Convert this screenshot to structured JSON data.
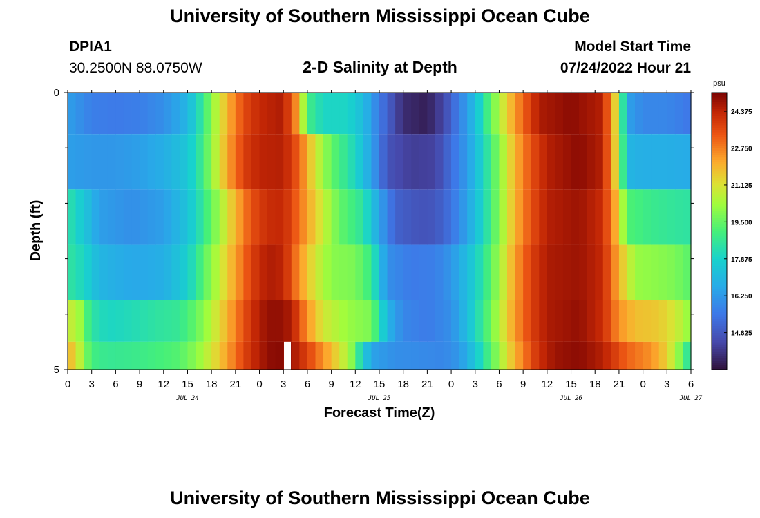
{
  "header": {
    "title": "University of Southern Mississippi Ocean Cube",
    "station": "DPIA1",
    "coords": "30.2500N  88.0750W",
    "chart_title": "2-D Salinity at Depth",
    "model_start_label": "Model Start Time",
    "model_start_value": "07/24/2022 Hour 21"
  },
  "footer": {
    "title": "University of Southern Mississippi Ocean Cube"
  },
  "chart_data": {
    "type": "heatmap",
    "title": "2-D Salinity at Depth",
    "xlabel": "Forecast Time(Z)",
    "ylabel": "Depth (ft)",
    "x_tick_labels": [
      "0",
      "3",
      "6",
      "9",
      "12",
      "15",
      "18",
      "21",
      "0",
      "3",
      "6",
      "9",
      "12",
      "15",
      "18",
      "21",
      "0",
      "3",
      "6",
      "9",
      "12",
      "15",
      "18",
      "21",
      "0",
      "3",
      "6"
    ],
    "day_labels": [
      {
        "label": "JUL 24",
        "hour": 15
      },
      {
        "label": "JUL 25",
        "hour": 39
      },
      {
        "label": "JUL 26",
        "hour": 63
      },
      {
        "label": "JUL 27",
        "hour": 78
      }
    ],
    "x_range_hours": [
      0,
      78
    ],
    "y_tick_labels": [
      "0",
      "5"
    ],
    "y_range_ft": [
      0,
      5
    ],
    "depth_bands_ft": [
      0.25,
      1.25,
      2.25,
      3.25,
      4.25,
      4.75
    ],
    "colorbar": {
      "unit": "psu",
      "min": 13.0,
      "max": 25.2,
      "tick_values": [
        24.375,
        22.75,
        21.125,
        19.5,
        17.875,
        16.25,
        14.625
      ],
      "tick_labels": [
        "24.375",
        "22.750",
        "21.125",
        "19.500",
        "17.875",
        "16.250",
        "14.625"
      ]
    },
    "missing_cells": [
      {
        "hour": 27.5,
        "band": 5
      }
    ],
    "profiles": [
      {
        "depth_ft": 0.25,
        "points": [
          [
            0,
            16.4
          ],
          [
            3,
            15.6
          ],
          [
            6,
            15.5
          ],
          [
            9,
            15.6
          ],
          [
            12,
            16.0
          ],
          [
            15,
            17.0
          ],
          [
            17,
            18.8
          ],
          [
            18.5,
            20.5
          ],
          [
            20,
            22.0
          ],
          [
            22,
            23.6
          ],
          [
            24,
            24.3
          ],
          [
            27,
            24.6
          ],
          [
            29,
            22.0
          ],
          [
            30,
            19.0
          ],
          [
            32,
            18.0
          ],
          [
            35,
            18.0
          ],
          [
            37,
            17.2
          ],
          [
            39,
            15.5
          ],
          [
            42,
            13.6
          ],
          [
            45,
            13.3
          ],
          [
            47,
            14.2
          ],
          [
            49,
            15.6
          ],
          [
            51,
            17.2
          ],
          [
            53,
            19.5
          ],
          [
            55,
            21.5
          ],
          [
            57,
            23.2
          ],
          [
            59,
            24.6
          ],
          [
            63,
            25.0
          ],
          [
            67,
            24.5
          ],
          [
            69,
            20.5
          ],
          [
            70,
            16.5
          ],
          [
            72,
            15.8
          ],
          [
            75,
            15.8
          ],
          [
            78,
            15.4
          ]
        ]
      },
      {
        "depth_ft": 1.25,
        "points": [
          [
            0,
            16.4
          ],
          [
            3,
            16.2
          ],
          [
            6,
            16.2
          ],
          [
            9,
            16.4
          ],
          [
            12,
            16.8
          ],
          [
            15,
            17.5
          ],
          [
            17,
            19.0
          ],
          [
            18.5,
            20.6
          ],
          [
            20,
            22.2
          ],
          [
            22,
            23.8
          ],
          [
            24,
            24.4
          ],
          [
            27,
            24.5
          ],
          [
            29,
            23.2
          ],
          [
            31,
            21.0
          ],
          [
            33,
            19.5
          ],
          [
            36,
            18.0
          ],
          [
            38,
            16.5
          ],
          [
            40,
            14.5
          ],
          [
            43,
            14.0
          ],
          [
            46,
            14.1
          ],
          [
            48,
            15.2
          ],
          [
            50,
            16.3
          ],
          [
            52,
            18.0
          ],
          [
            54,
            20.0
          ],
          [
            56,
            22.0
          ],
          [
            58,
            23.5
          ],
          [
            60,
            24.5
          ],
          [
            64,
            25.0
          ],
          [
            67,
            24.5
          ],
          [
            69,
            20.6
          ],
          [
            70,
            17.0
          ],
          [
            72,
            16.8
          ],
          [
            75,
            16.8
          ],
          [
            78,
            16.7
          ]
        ]
      },
      {
        "depth_ft": 2.25,
        "points": [
          [
            0,
            18.5
          ],
          [
            2,
            17.5
          ],
          [
            4,
            16.4
          ],
          [
            8,
            16.0
          ],
          [
            12,
            16.4
          ],
          [
            15,
            17.4
          ],
          [
            17,
            18.7
          ],
          [
            19,
            20.3
          ],
          [
            21,
            22.0
          ],
          [
            23,
            23.5
          ],
          [
            25,
            24.2
          ],
          [
            27,
            24.3
          ],
          [
            29,
            23.0
          ],
          [
            31,
            21.5
          ],
          [
            34,
            19.5
          ],
          [
            37,
            18.5
          ],
          [
            39,
            16.5
          ],
          [
            41,
            14.9
          ],
          [
            44,
            14.5
          ],
          [
            46,
            14.6
          ],
          [
            48,
            15.3
          ],
          [
            50,
            16.5
          ],
          [
            52,
            18.0
          ],
          [
            54,
            20.0
          ],
          [
            56,
            22.0
          ],
          [
            58,
            23.5
          ],
          [
            60,
            24.5
          ],
          [
            64,
            24.8
          ],
          [
            67,
            24.2
          ],
          [
            69,
            21.5
          ],
          [
            70,
            19.2
          ],
          [
            73,
            18.8
          ],
          [
            76,
            18.6
          ],
          [
            78,
            18.5
          ]
        ]
      },
      {
        "depth_ft": 3.25,
        "points": [
          [
            0,
            18.6
          ],
          [
            2,
            18.0
          ],
          [
            4,
            17.0
          ],
          [
            8,
            16.6
          ],
          [
            12,
            16.8
          ],
          [
            15,
            17.8
          ],
          [
            17,
            19.3
          ],
          [
            19,
            20.8
          ],
          [
            21,
            22.3
          ],
          [
            23,
            23.8
          ],
          [
            25,
            24.6
          ],
          [
            27,
            24.4
          ],
          [
            29,
            22.5
          ],
          [
            31,
            21.0
          ],
          [
            33,
            20.0
          ],
          [
            36,
            19.8
          ],
          [
            38,
            18.8
          ],
          [
            40,
            16.0
          ],
          [
            43,
            15.5
          ],
          [
            46,
            15.6
          ],
          [
            48,
            16.2
          ],
          [
            50,
            17.2
          ],
          [
            52,
            18.5
          ],
          [
            54,
            20.3
          ],
          [
            56,
            22.3
          ],
          [
            58,
            23.8
          ],
          [
            60,
            24.6
          ],
          [
            64,
            24.8
          ],
          [
            67,
            24.3
          ],
          [
            69,
            22.0
          ],
          [
            71,
            20.2
          ],
          [
            74,
            20.0
          ],
          [
            76,
            19.8
          ],
          [
            78,
            19.3
          ]
        ]
      },
      {
        "depth_ft": 4.25,
        "points": [
          [
            0,
            20.5
          ],
          [
            1,
            21.0
          ],
          [
            2,
            19.5
          ],
          [
            3,
            18.5
          ],
          [
            5,
            18.0
          ],
          [
            8,
            18.2
          ],
          [
            11,
            18.5
          ],
          [
            14,
            18.7
          ],
          [
            16,
            19.5
          ],
          [
            18,
            20.6
          ],
          [
            20,
            22.0
          ],
          [
            22,
            23.5
          ],
          [
            24,
            24.6
          ],
          [
            26,
            25.0
          ],
          [
            28,
            24.6
          ],
          [
            30,
            22.5
          ],
          [
            32,
            21.0
          ],
          [
            35,
            20.2
          ],
          [
            38,
            19.8
          ],
          [
            40,
            17.0
          ],
          [
            42,
            15.8
          ],
          [
            45,
            15.5
          ],
          [
            48,
            16.0
          ],
          [
            50,
            17.2
          ],
          [
            52,
            18.8
          ],
          [
            54,
            20.6
          ],
          [
            56,
            22.4
          ],
          [
            58,
            23.8
          ],
          [
            60,
            24.6
          ],
          [
            64,
            24.9
          ],
          [
            67,
            24.2
          ],
          [
            69,
            22.5
          ],
          [
            71,
            21.8
          ],
          [
            74,
            21.6
          ],
          [
            76,
            21.0
          ],
          [
            78,
            20.0
          ]
        ]
      },
      {
        "depth_ft": 4.75,
        "points": [
          [
            0,
            22.0
          ],
          [
            1,
            21.4
          ],
          [
            2,
            20.0
          ],
          [
            3,
            19.0
          ],
          [
            5,
            18.7
          ],
          [
            8,
            18.8
          ],
          [
            11,
            19.0
          ],
          [
            14,
            19.3
          ],
          [
            16,
            20.0
          ],
          [
            18,
            21.0
          ],
          [
            20,
            22.3
          ],
          [
            22,
            23.7
          ],
          [
            24,
            24.6
          ],
          [
            26,
            25.1
          ],
          [
            28,
            24.8
          ],
          [
            30,
            23.8
          ],
          [
            32,
            22.5
          ],
          [
            34,
            21.2
          ],
          [
            35.5,
            20.0
          ],
          [
            36.5,
            18.5
          ],
          [
            38,
            16.5
          ],
          [
            41,
            16.0
          ],
          [
            44,
            15.9
          ],
          [
            47,
            15.8
          ],
          [
            49,
            16.2
          ],
          [
            51,
            17.5
          ],
          [
            53,
            19.3
          ],
          [
            55,
            21.2
          ],
          [
            57,
            22.8
          ],
          [
            59,
            24.2
          ],
          [
            61,
            24.8
          ],
          [
            64,
            25.0
          ],
          [
            67,
            24.5
          ],
          [
            70,
            23.2
          ],
          [
            73,
            22.5
          ],
          [
            75,
            21.5
          ],
          [
            77,
            19.5
          ],
          [
            78,
            18.0
          ]
        ]
      }
    ]
  }
}
